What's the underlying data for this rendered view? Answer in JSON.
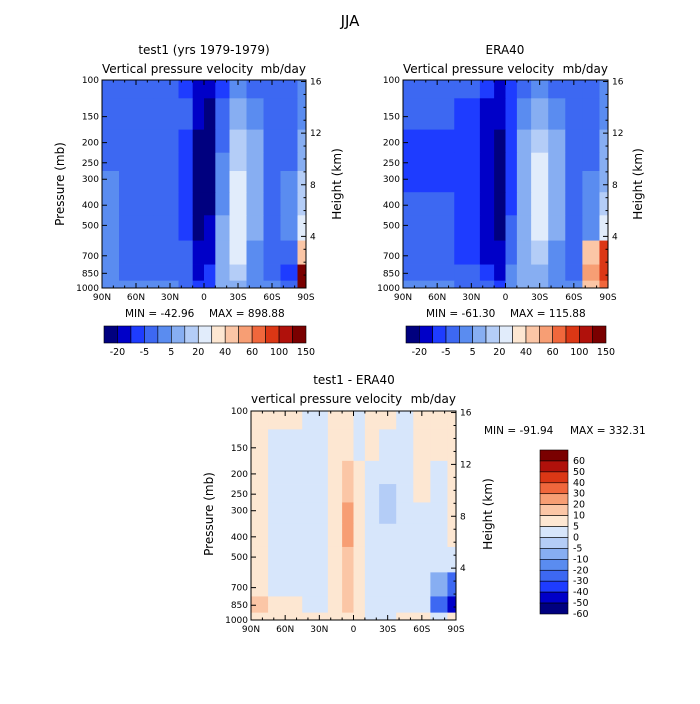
{
  "page": {
    "title": "JJA"
  },
  "palettes": {
    "main": [
      "#00007f",
      "#0000c8",
      "#1e3cff",
      "#3d68f2",
      "#5a8cf0",
      "#87aef2",
      "#b4cdf7",
      "#e1ecfb",
      "#fde7d2",
      "#fbc6a6",
      "#f79e74",
      "#f0673c",
      "#db3715",
      "#b0110b",
      "#7a0000"
    ],
    "diff": [
      "#00007f",
      "#0000c8",
      "#1e3cff",
      "#3d68f2",
      "#5a8cf0",
      "#87aef2",
      "#b4cdf7",
      "#d7e6fb",
      "#fde7d2",
      "#fbc6a6",
      "#f79e74",
      "#f0673c",
      "#db3715",
      "#b0110b",
      "#7a0000"
    ]
  },
  "chart_data": [
    {
      "type": "heatmap",
      "title": "test1 (yrs 1979-1979)",
      "variable": "Vertical pressure velocity",
      "units": "mb/day",
      "ylabel": "Pressure (mb)",
      "y2label": "Height (km)",
      "x_ticks": [
        "90N",
        "60N",
        "30N",
        "0",
        "30S",
        "60S",
        "90S"
      ],
      "y_ticks": [
        100,
        150,
        200,
        250,
        300,
        400,
        500,
        700,
        850,
        1000
      ],
      "y2_ticks": [
        4,
        8,
        12,
        16
      ],
      "min_label": "MIN = -42.96",
      "max_label": "MAX = 898.88",
      "colorbar_labels": [
        "-20",
        "-5",
        "5",
        "20",
        "40",
        "60",
        "100",
        "150"
      ],
      "x_lat": [
        90,
        60,
        30,
        15,
        5,
        -5,
        -15,
        -30,
        -45,
        -60,
        -75,
        -90
      ],
      "z": [
        [
          3,
          3,
          3,
          2,
          1,
          1,
          2,
          4,
          3,
          3,
          3,
          4
        ],
        [
          3,
          3,
          3,
          3,
          1,
          0,
          3,
          5,
          4,
          3,
          3,
          4
        ],
        [
          3,
          3,
          3,
          2,
          0,
          0,
          3,
          6,
          5,
          3,
          3,
          5
        ],
        [
          3,
          3,
          3,
          2,
          0,
          0,
          4,
          6,
          5,
          3,
          3,
          5
        ],
        [
          4,
          3,
          3,
          2,
          0,
          0,
          4,
          7,
          5,
          3,
          4,
          6
        ],
        [
          4,
          3,
          3,
          2,
          0,
          0,
          4,
          7,
          5,
          3,
          4,
          6
        ],
        [
          4,
          3,
          3,
          2,
          0,
          1,
          5,
          7,
          5,
          3,
          4,
          7
        ],
        [
          4,
          3,
          3,
          3,
          1,
          1,
          5,
          7,
          4,
          3,
          3,
          9
        ],
        [
          4,
          3,
          3,
          3,
          1,
          2,
          5,
          6,
          4,
          3,
          2,
          14
        ],
        [
          4,
          4,
          4,
          3,
          2,
          2,
          5,
          5,
          4,
          4,
          3,
          14
        ]
      ]
    },
    {
      "type": "heatmap",
      "title": "ERA40",
      "variable": "Vertical pressure velocity",
      "units": "mb/day",
      "ylabel": "Pressure (mb)",
      "y2label": "Height (km)",
      "x_ticks": [
        "90N",
        "60N",
        "30N",
        "0",
        "30S",
        "60S",
        "90S"
      ],
      "y_ticks": [
        100,
        150,
        200,
        250,
        300,
        400,
        500,
        700,
        850,
        1000
      ],
      "y2_ticks": [
        4,
        8,
        12,
        16
      ],
      "min_label": "MIN = -61.30",
      "max_label": "MAX = 115.88",
      "colorbar_labels": [
        "-20",
        "-5",
        "5",
        "20",
        "40",
        "60",
        "100",
        "150"
      ],
      "x_lat": [
        90,
        60,
        30,
        15,
        5,
        -5,
        -15,
        -30,
        -45,
        -60,
        -75,
        -90
      ],
      "z": [
        [
          3,
          3,
          3,
          2,
          1,
          2,
          3,
          4,
          3,
          3,
          3,
          4
        ],
        [
          3,
          3,
          2,
          1,
          1,
          2,
          4,
          5,
          4,
          3,
          3,
          4
        ],
        [
          2,
          2,
          2,
          1,
          0,
          2,
          5,
          6,
          5,
          3,
          3,
          5
        ],
        [
          2,
          2,
          2,
          1,
          0,
          2,
          5,
          7,
          5,
          3,
          3,
          5
        ],
        [
          2,
          2,
          2,
          1,
          0,
          2,
          5,
          7,
          5,
          3,
          4,
          5
        ],
        [
          3,
          3,
          2,
          1,
          0,
          2,
          5,
          7,
          5,
          3,
          4,
          6
        ],
        [
          3,
          3,
          2,
          1,
          0,
          3,
          5,
          7,
          5,
          3,
          4,
          7
        ],
        [
          3,
          3,
          2,
          1,
          1,
          3,
          5,
          6,
          4,
          3,
          9,
          12
        ],
        [
          3,
          3,
          3,
          2,
          1,
          4,
          5,
          5,
          4,
          3,
          10,
          12
        ],
        [
          4,
          4,
          3,
          3,
          2,
          4,
          5,
          5,
          4,
          4,
          9,
          11
        ]
      ]
    },
    {
      "type": "heatmap",
      "title": "test1 - ERA40",
      "variable": "vertical pressure velocity",
      "units": "mb/day",
      "ylabel": "Pressure (mb)",
      "y2label": "Height (km)",
      "x_ticks": [
        "90N",
        "60N",
        "30N",
        "0",
        "30S",
        "60S",
        "90S"
      ],
      "y_ticks": [
        100,
        150,
        200,
        250,
        300,
        400,
        500,
        700,
        850,
        1000
      ],
      "y2_ticks": [
        4,
        8,
        12,
        16
      ],
      "min_label": "MIN = -91.94",
      "max_label": "MAX = 332.31",
      "colorbar_labels": [
        "60",
        "50",
        "40",
        "30",
        "20",
        "10",
        "5",
        "0",
        "-5",
        "-10",
        "-20",
        "-30",
        "-40",
        "-50",
        "-60"
      ],
      "x_lat": [
        90,
        60,
        30,
        15,
        5,
        -5,
        -15,
        -30,
        -45,
        -60,
        -75,
        -90
      ],
      "z": [
        [
          8,
          8,
          7,
          8,
          8,
          7,
          8,
          8,
          7,
          8,
          8,
          8
        ],
        [
          8,
          7,
          7,
          8,
          8,
          7,
          8,
          7,
          7,
          8,
          8,
          8
        ],
        [
          8,
          7,
          7,
          8,
          9,
          8,
          7,
          7,
          7,
          8,
          7,
          8
        ],
        [
          8,
          7,
          7,
          8,
          9,
          8,
          7,
          6,
          7,
          8,
          7,
          8
        ],
        [
          8,
          7,
          7,
          8,
          10,
          8,
          7,
          6,
          7,
          7,
          7,
          8
        ],
        [
          8,
          7,
          7,
          8,
          10,
          8,
          7,
          7,
          7,
          7,
          7,
          8
        ],
        [
          8,
          7,
          7,
          8,
          9,
          8,
          7,
          7,
          7,
          7,
          7,
          7
        ],
        [
          8,
          7,
          7,
          8,
          9,
          8,
          7,
          7,
          7,
          7,
          5,
          3
        ],
        [
          9,
          8,
          7,
          8,
          9,
          8,
          7,
          7,
          7,
          7,
          3,
          1
        ],
        [
          8,
          8,
          8,
          8,
          8,
          8,
          7,
          7,
          8,
          8,
          7,
          8
        ]
      ]
    }
  ]
}
